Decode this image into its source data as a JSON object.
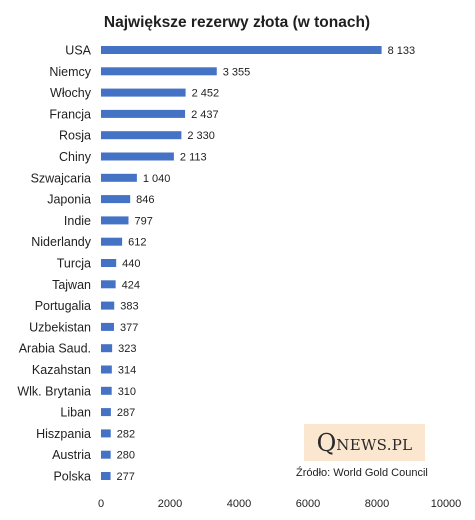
{
  "chart_data": {
    "type": "bar",
    "orientation": "horizontal",
    "title": "Największe rezerwy złota (w tonach)",
    "categories": [
      "USA",
      "Niemcy",
      "Włochy",
      "Francja",
      "Rosja",
      "Chiny",
      "Szwajcaria",
      "Japonia",
      "Indie",
      "Niderlandy",
      "Turcja",
      "Tajwan",
      "Portugalia",
      "Uzbekistan",
      "Arabia Saud.",
      "Kazahstan",
      "Wlk. Brytania",
      "Liban",
      "Hiszpania",
      "Austria",
      "Polska"
    ],
    "values": [
      8133,
      3355,
      2452,
      2437,
      2330,
      2113,
      1040,
      846,
      797,
      612,
      440,
      424,
      383,
      377,
      323,
      314,
      310,
      287,
      282,
      280,
      277
    ],
    "value_labels": [
      "8 133",
      "3 355",
      "2 452",
      "2 437",
      "2 330",
      "2 113",
      "1 040",
      "846",
      "797",
      "612",
      "440",
      "424",
      "383",
      "377",
      "323",
      "314",
      "310",
      "287",
      "282",
      "280",
      "277"
    ],
    "xlim": [
      0,
      10000
    ],
    "xticks": [
      0,
      2000,
      4000,
      6000,
      8000,
      10000
    ],
    "xtick_labels": [
      "0",
      "2000",
      "4000",
      "6000",
      "8000",
      "10000"
    ],
    "grid": false,
    "bar_color": "#4472c4"
  },
  "logo": {
    "q": "Q",
    "rest": "NEWS.PL"
  },
  "source": "Źródło:  World Gold Council"
}
